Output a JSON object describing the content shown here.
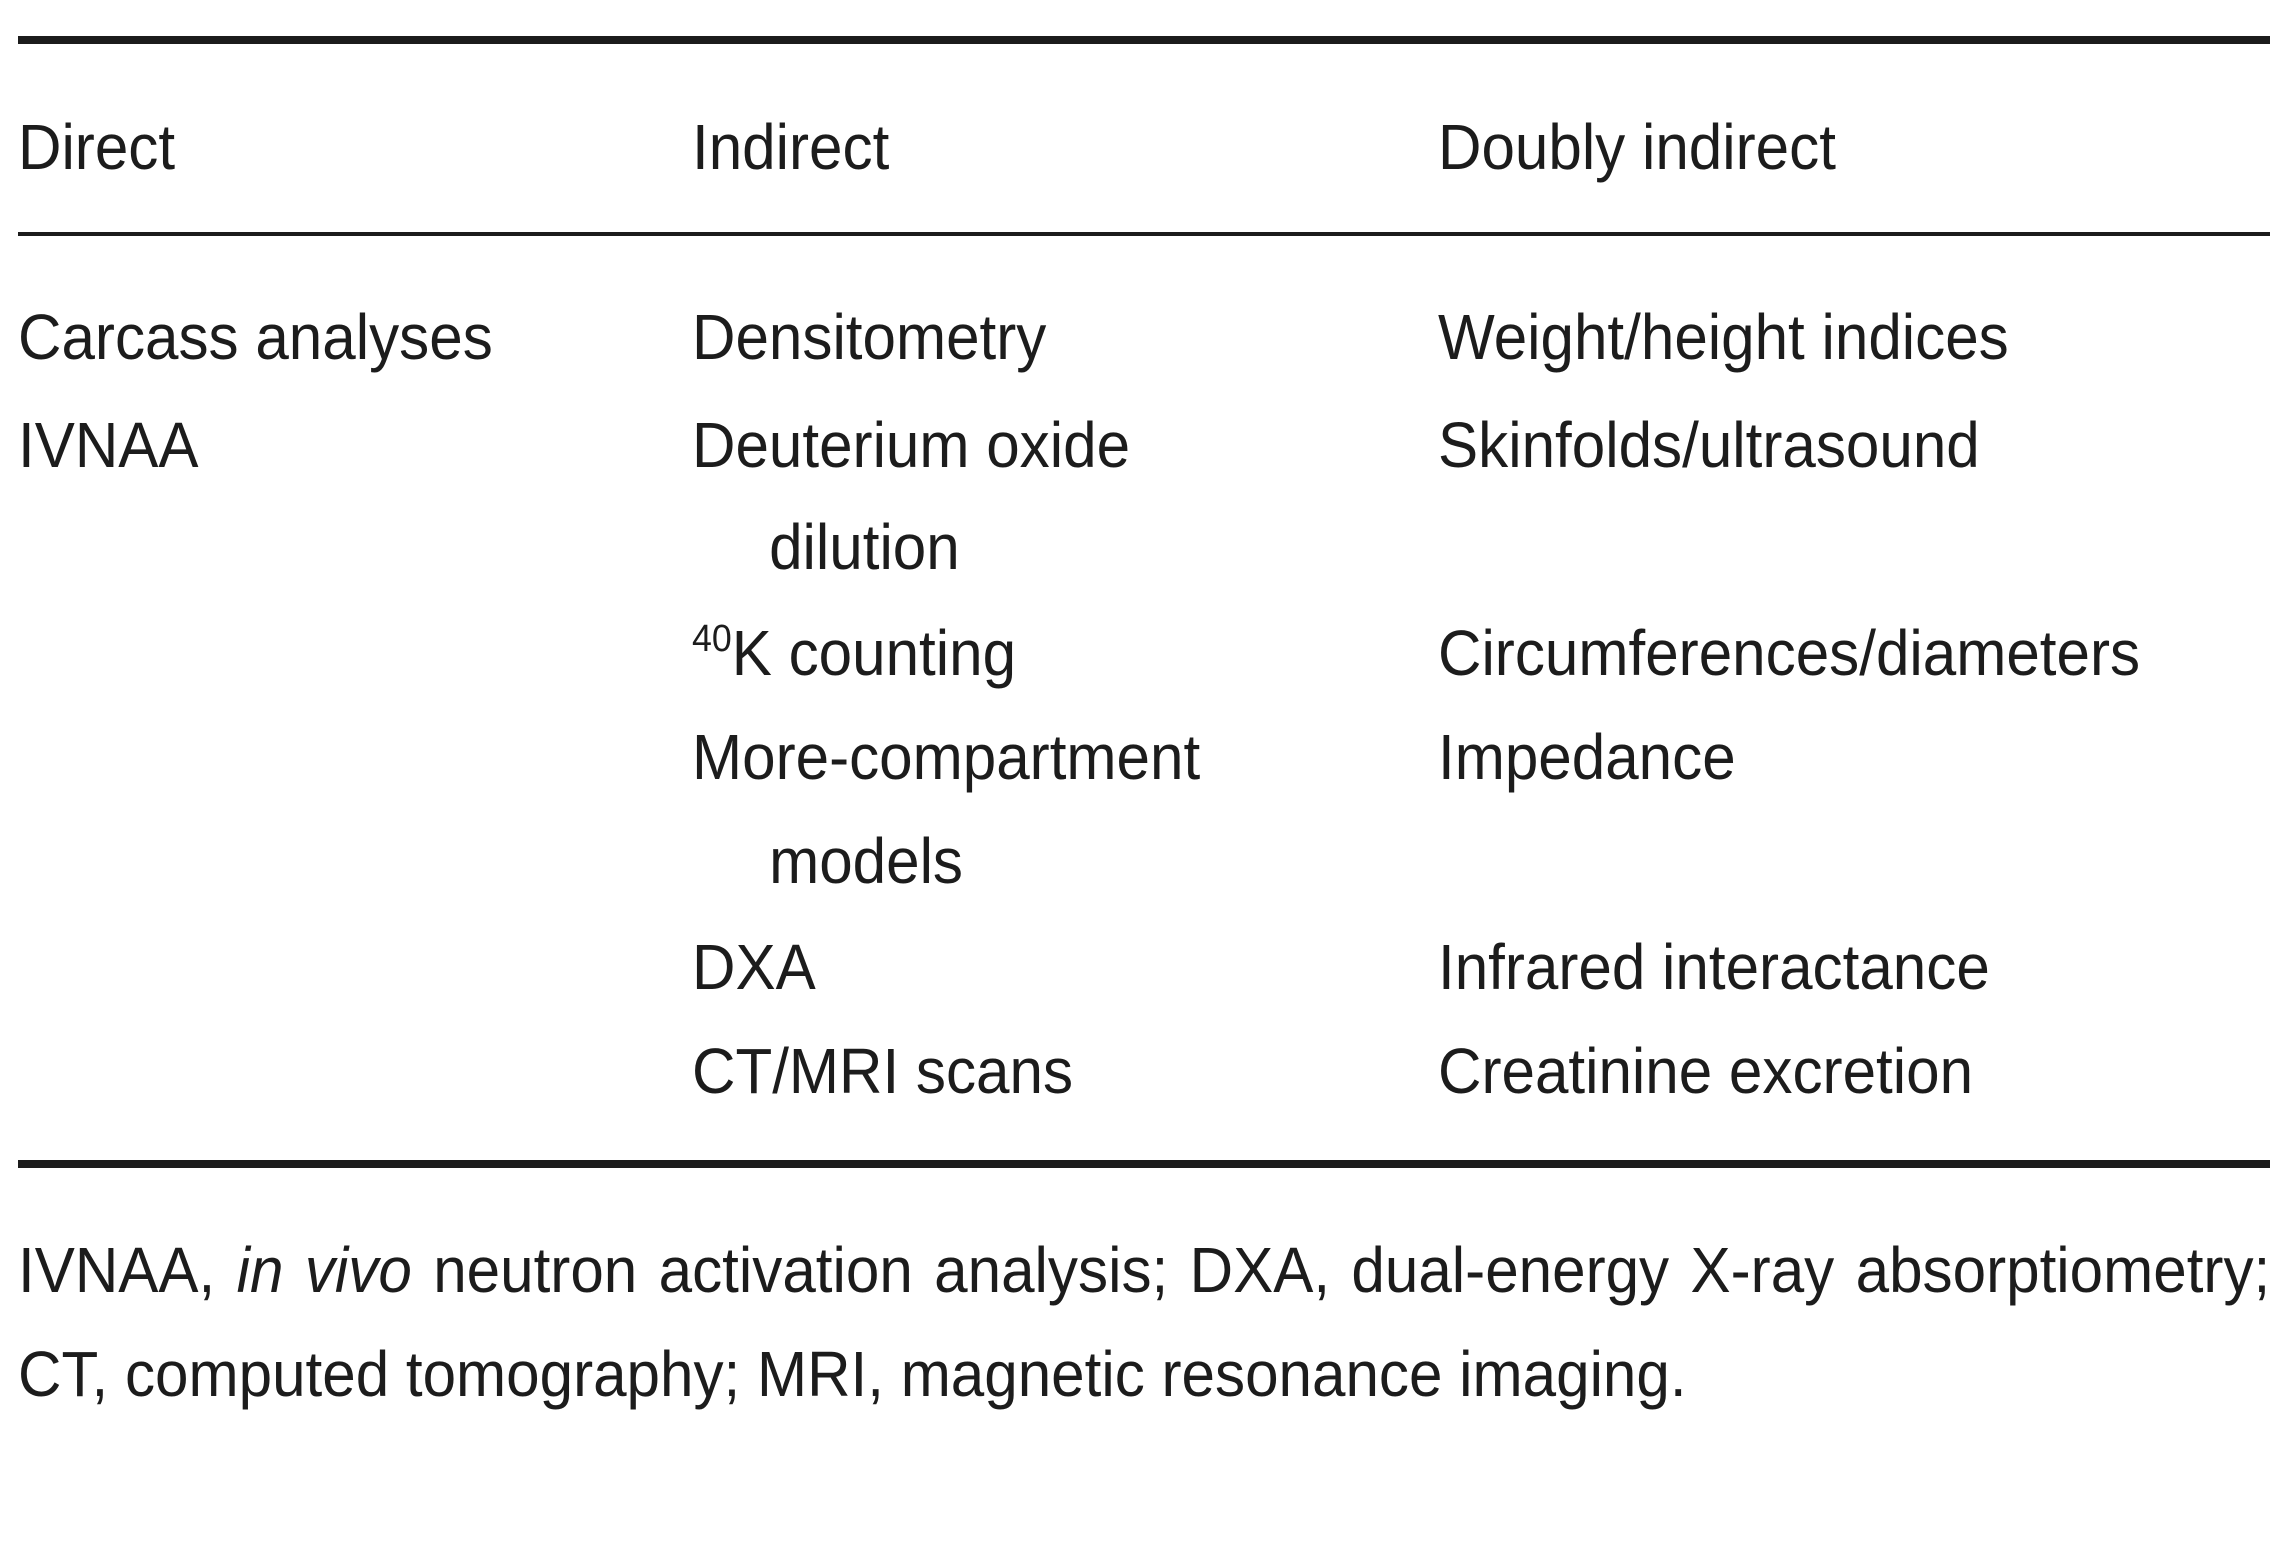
{
  "table": {
    "headers": [
      "Direct",
      "Indirect",
      "Doubly indirect"
    ],
    "direct": [
      "Carcass analyses",
      "IVNAA"
    ],
    "indirect": [
      {
        "line1": "Densitometry",
        "line2": ""
      },
      {
        "line1": "Deuterium oxide",
        "line2": "dilution"
      },
      {
        "sup": "40",
        "line1": "K counting",
        "line2": ""
      },
      {
        "line1": "More-compartment",
        "line2": "models"
      },
      {
        "line1": "DXA",
        "line2": ""
      },
      {
        "line1": "CT/MRI scans",
        "line2": ""
      }
    ],
    "doubly_indirect": [
      "Weight/height indices",
      "Skinfolds/ultrasound",
      "Circumferences/diameters",
      "Impedance",
      "Infrared interactance",
      "Creatinine excretion"
    ]
  },
  "footnote": {
    "prefix": "IVNAA, ",
    "italic": "in vivo",
    "rest": " neutron activation analysis; DXA, dual-energy X-ray absorptiometry; CT, computed tomography; MRI, magnetic resonance imaging."
  }
}
